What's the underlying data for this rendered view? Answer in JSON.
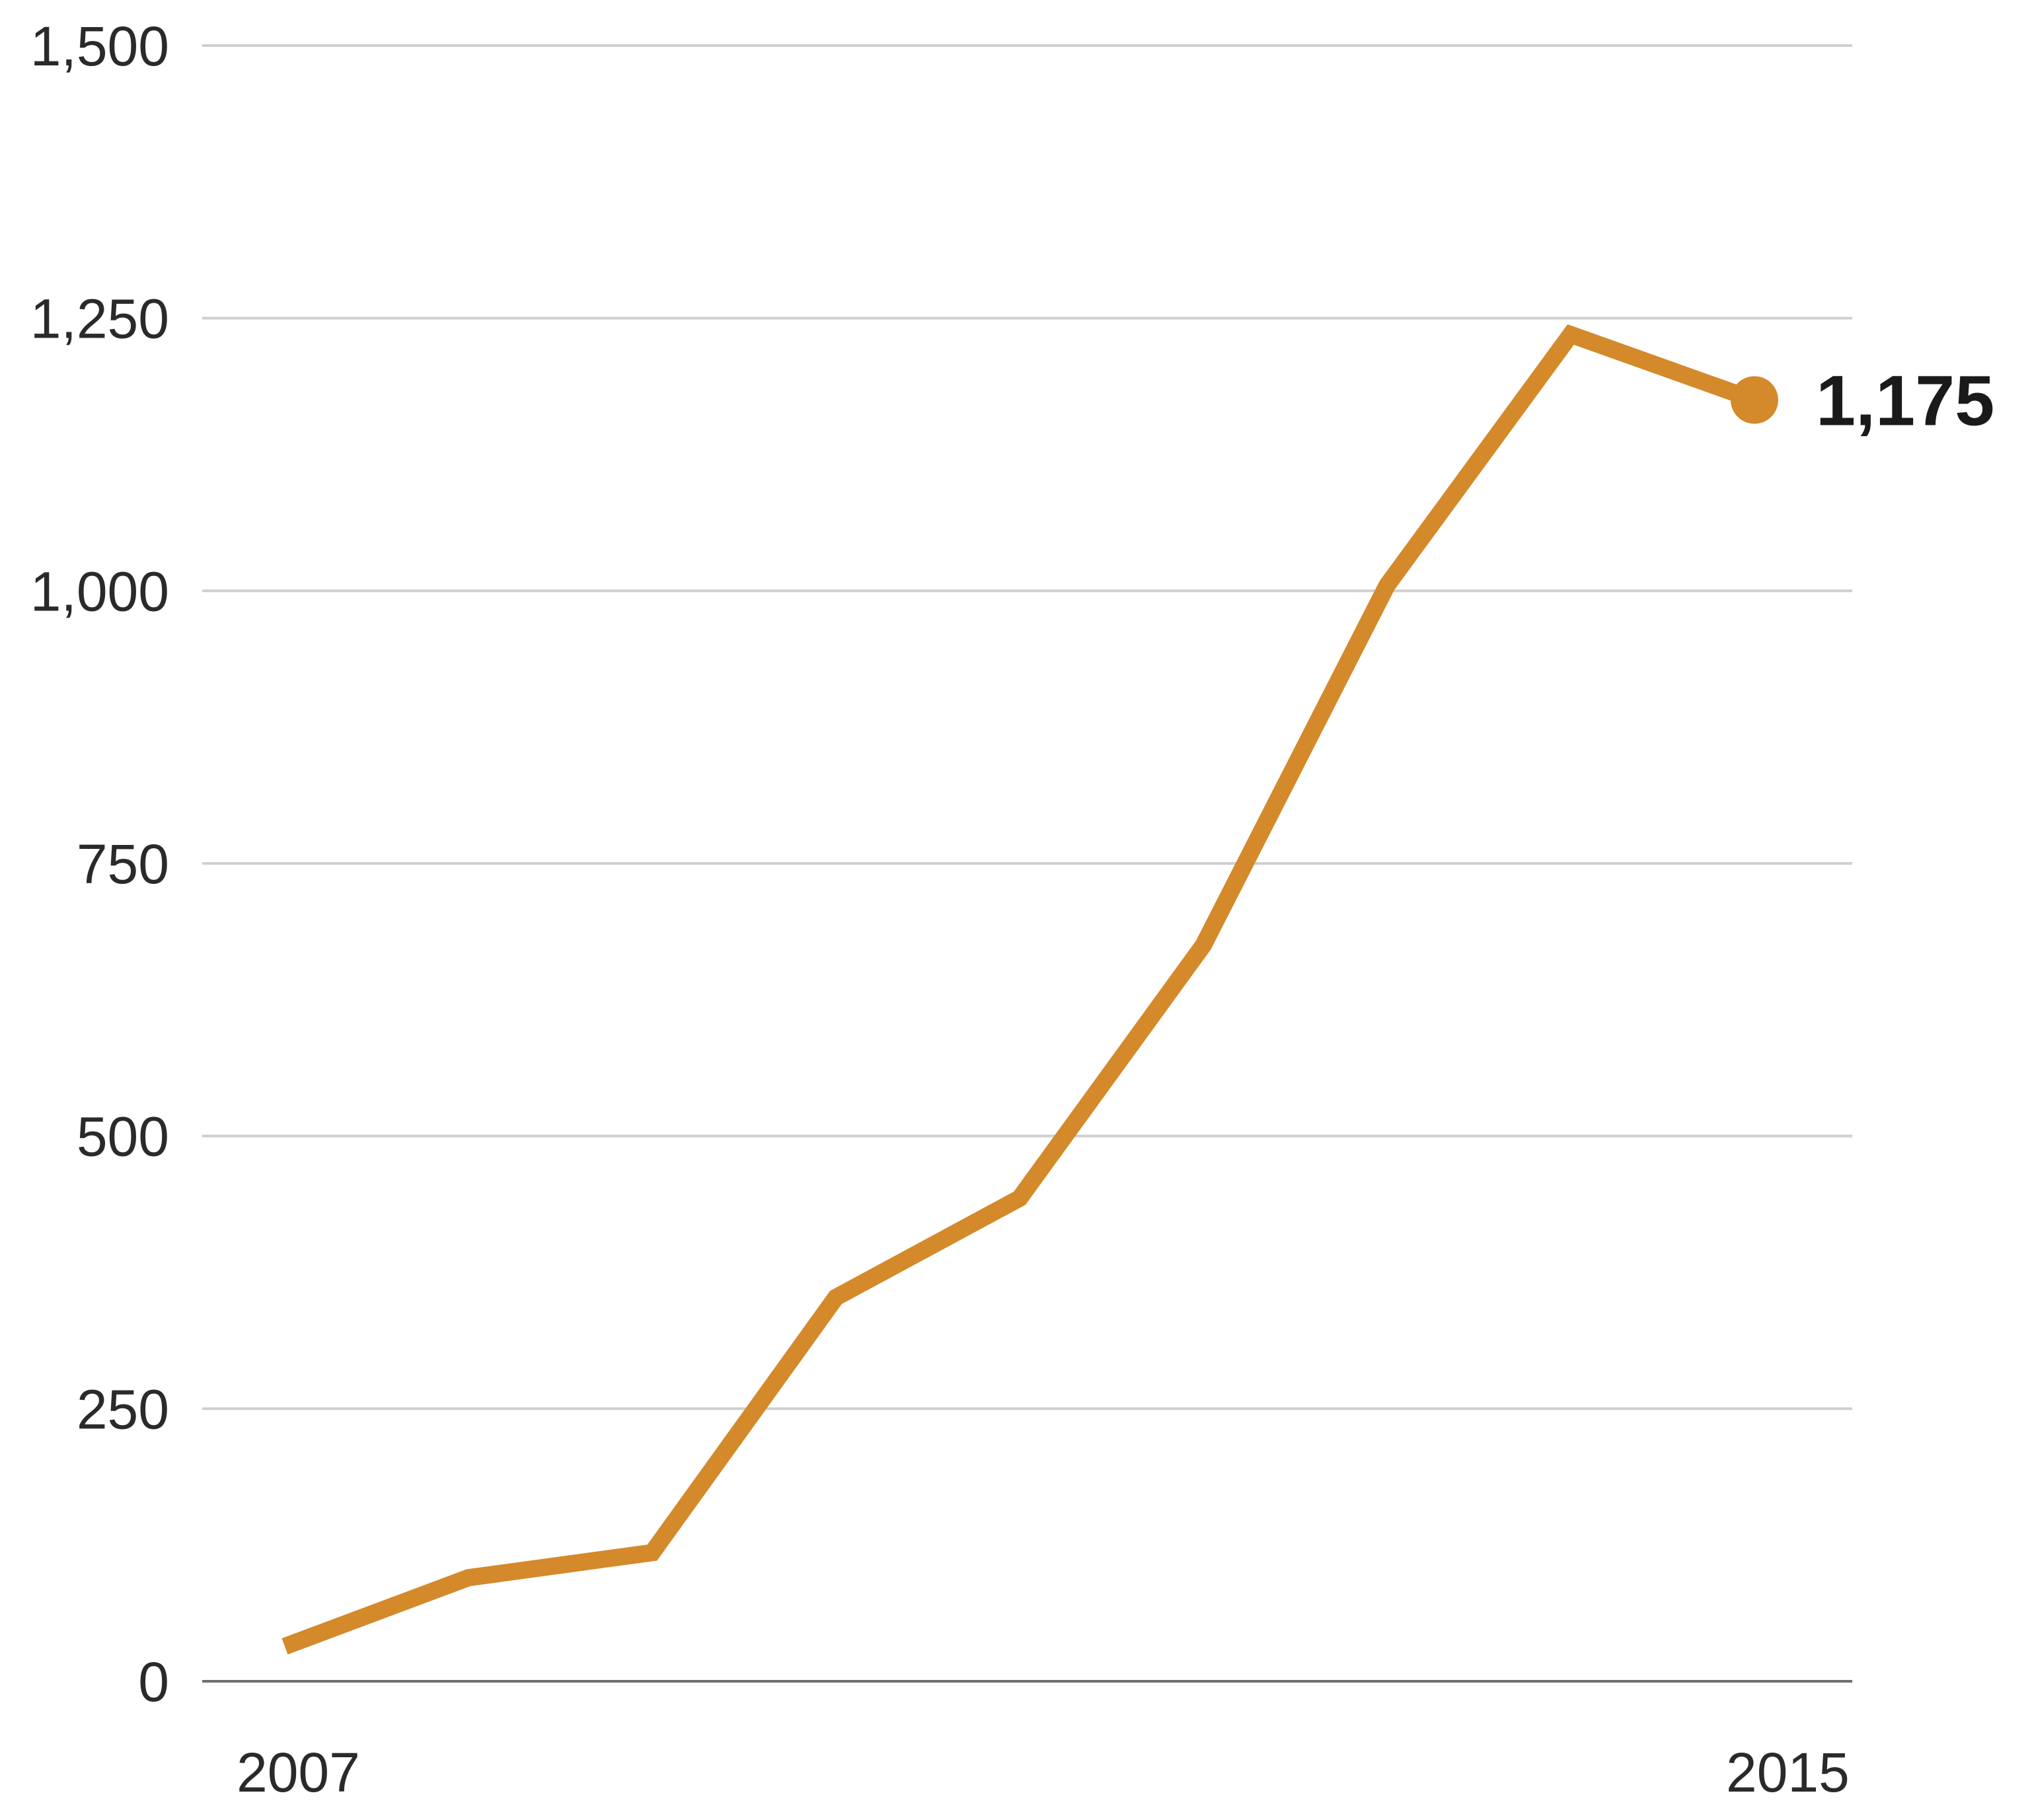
{
  "chart_data": {
    "type": "line",
    "title": "",
    "xlabel": "",
    "ylabel": "",
    "x": [
      2007,
      2008,
      2009,
      2010,
      2011,
      2012,
      2013,
      2014,
      2015
    ],
    "series": [
      {
        "name": "value",
        "color": "#D4892A",
        "values": [
          32,
          95,
          118,
          352,
          443,
          675,
          1005,
          1235,
          1175
        ]
      }
    ],
    "ylim": [
      0,
      1500
    ],
    "y_ticks": [
      0,
      250,
      500,
      750,
      1000,
      1250,
      1500
    ],
    "y_tick_labels": [
      "0",
      "250",
      "500",
      "750",
      "1,000",
      "1,250",
      "1,500"
    ],
    "x_tick_labels": [
      "2007",
      "2015"
    ],
    "end_annotation": "1,175",
    "grid": true,
    "legend": "none"
  },
  "labels": {
    "y": [
      "0",
      "250",
      "500",
      "750",
      "1,000",
      "1,250",
      "1,500"
    ],
    "x_start": "2007",
    "x_end": "2015",
    "end_value": "1,175"
  }
}
